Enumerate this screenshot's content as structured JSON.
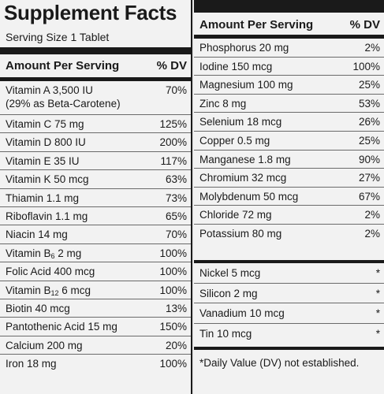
{
  "title": "Supplement Facts",
  "serving_size": "Serving Size 1 Tablet",
  "left_header": {
    "amount": "Amount Per Serving",
    "dv": "% DV"
  },
  "right_header": {
    "amount": "Amount Per Serving",
    "dv": "% DV"
  },
  "left_rows": [
    {
      "name": "Vitamin A 3,500 IU",
      "name2": "(29% as Beta-Carotene)",
      "dv": "70%"
    },
    {
      "name": "Vitamin C 75 mg",
      "dv": "125%"
    },
    {
      "name": "Vitamin D 800 IU",
      "dv": "200%"
    },
    {
      "name": "Vitamin E 35 IU",
      "dv": "117%"
    },
    {
      "name": "Vitamin K 50 mcg",
      "dv": "63%"
    },
    {
      "name": "Thiamin 1.1 mg",
      "dv": "73%"
    },
    {
      "name": "Riboflavin 1.1 mg",
      "dv": "65%"
    },
    {
      "name": "Niacin 14 mg",
      "dv": "70%"
    },
    {
      "name_pre": "Vitamin B",
      "name_sub": "6",
      "name_post": " 2 mg",
      "dv": "100%"
    },
    {
      "name": "Folic Acid 400 mcg",
      "dv": "100%"
    },
    {
      "name_pre": "Vitamin B",
      "name_sub": "12",
      "name_post": " 6 mcg",
      "dv": "100%"
    },
    {
      "name": "Biotin 40 mcg",
      "dv": "13%"
    },
    {
      "name": "Pantothenic Acid 15 mg",
      "dv": "150%"
    },
    {
      "name": "Calcium 200 mg",
      "dv": "20%"
    },
    {
      "name": "Iron 18 mg",
      "dv": "100%"
    }
  ],
  "right_rows_a": [
    {
      "name": "Phosphorus 20 mg",
      "dv": "2%"
    },
    {
      "name": "Iodine 150 mcg",
      "dv": "100%"
    },
    {
      "name": "Magnesium 100 mg",
      "dv": "25%"
    },
    {
      "name": "Zinc 8 mg",
      "dv": "53%"
    },
    {
      "name": "Selenium 18 mcg",
      "dv": "26%"
    },
    {
      "name": "Copper 0.5 mg",
      "dv": "25%"
    },
    {
      "name": "Manganese 1.8 mg",
      "dv": "90%"
    },
    {
      "name": "Chromium 32 mcg",
      "dv": "27%"
    },
    {
      "name": "Molybdenum 50 mcg",
      "dv": "67%"
    },
    {
      "name": "Chloride 72 mg",
      "dv": "2%"
    },
    {
      "name": "Potassium 80 mg",
      "dv": "2%"
    }
  ],
  "right_rows_b": [
    {
      "name": "Nickel 5 mcg",
      "dv": "*"
    },
    {
      "name": "Silicon 2 mg",
      "dv": "*"
    },
    {
      "name": "Vanadium 10 mcg",
      "dv": "*"
    },
    {
      "name": "Tin 10 mcg",
      "dv": "*"
    }
  ],
  "footnote": "*Daily Value (DV) not established."
}
